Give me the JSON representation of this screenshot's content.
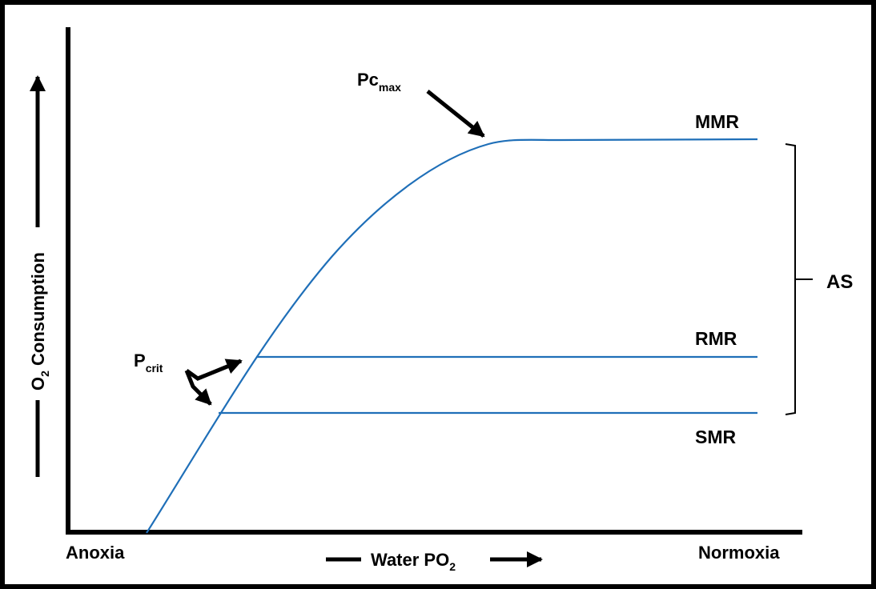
{
  "colors": {
    "curve": "#1f6fb8",
    "axis": "#000000",
    "text": "#000000"
  },
  "axes": {
    "y_label": "O2 Consumption",
    "y_label_main": "O",
    "y_label_sub": "2",
    "y_label_rest": " Consumption",
    "x_label_main": "Water PO",
    "x_label_sub": "2",
    "x_start_label": "Anoxia",
    "x_end_label": "Normoxia"
  },
  "curves": {
    "mmr": "MMR",
    "rmr": "RMR",
    "smr": "SMR"
  },
  "annotations": {
    "pcmax_main": "Pc",
    "pcmax_sub": "max",
    "pcrit_main": "P",
    "pcrit_sub": "crit",
    "scope": "AS"
  }
}
